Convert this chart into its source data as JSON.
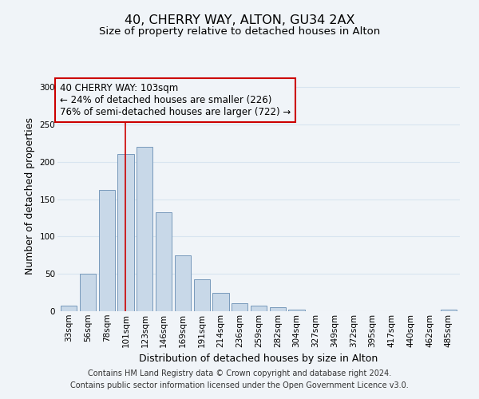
{
  "title": "40, CHERRY WAY, ALTON, GU34 2AX",
  "subtitle": "Size of property relative to detached houses in Alton",
  "xlabel": "Distribution of detached houses by size in Alton",
  "ylabel": "Number of detached properties",
  "footer_line1": "Contains HM Land Registry data © Crown copyright and database right 2024.",
  "footer_line2": "Contains public sector information licensed under the Open Government Licence v3.0.",
  "bar_labels": [
    "33sqm",
    "56sqm",
    "78sqm",
    "101sqm",
    "123sqm",
    "146sqm",
    "169sqm",
    "191sqm",
    "214sqm",
    "236sqm",
    "259sqm",
    "282sqm",
    "304sqm",
    "327sqm",
    "349sqm",
    "372sqm",
    "395sqm",
    "417sqm",
    "440sqm",
    "462sqm",
    "485sqm"
  ],
  "bar_values": [
    7,
    50,
    163,
    211,
    220,
    133,
    75,
    43,
    25,
    11,
    8,
    5,
    2,
    0,
    0,
    0,
    0,
    0,
    0,
    0,
    2
  ],
  "bar_color": "#c8d8e8",
  "bar_edge_color": "#7799bb",
  "ylim": [
    0,
    310
  ],
  "yticks": [
    0,
    50,
    100,
    150,
    200,
    250,
    300
  ],
  "ann_line1": "40 CHERRY WAY: 103sqm",
  "ann_line2": "← 24% of detached houses are smaller (226)",
  "ann_line3": "76% of semi-detached houses are larger (722) →",
  "property_line_x": 2.97,
  "property_line_color": "#cc0000",
  "annotation_box_color": "#cc0000",
  "background_color": "#f0f4f8",
  "grid_color": "#d8e4f0",
  "title_fontsize": 11.5,
  "subtitle_fontsize": 9.5,
  "axis_label_fontsize": 9,
  "tick_fontsize": 7.5,
  "annotation_fontsize": 8.5,
  "footer_fontsize": 7
}
